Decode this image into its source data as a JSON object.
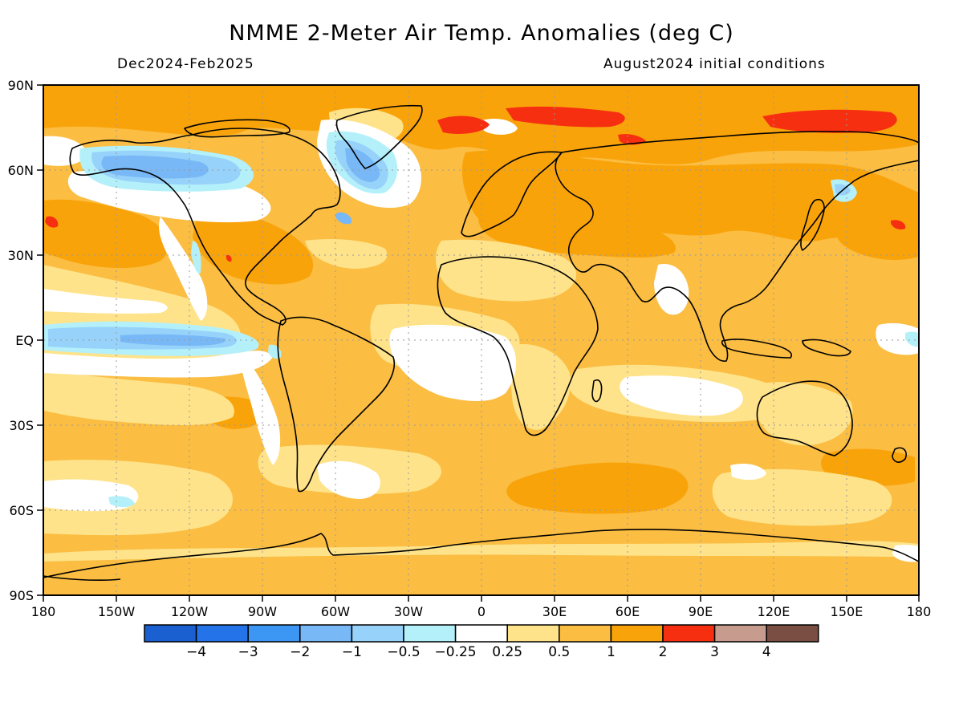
{
  "title": "NMME 2-Meter Air Temp. Anomalies (deg C)",
  "period": "Dec2024-Feb2025",
  "initial_conditions": "August2024 initial conditions",
  "lat_labels": [
    "90N",
    "60N",
    "30N",
    "EQ",
    "30S",
    "60S",
    "90S"
  ],
  "lon_labels": [
    "180",
    "150W",
    "120W",
    "90W",
    "60W",
    "30W",
    "0",
    "30E",
    "60E",
    "90E",
    "120E",
    "150E",
    "180"
  ],
  "colors": {
    "c_m4": "#1a60d0",
    "c_m3": "#2473e8",
    "c_m2": "#3c96f4",
    "c_m1": "#78b8f6",
    "c_m05": "#96d2fa",
    "c_m025": "#b4f0fa",
    "c_0": "#ffffff",
    "c_025": "#fee38a",
    "c_05": "#fbbd42",
    "c_1": "#f9a30a",
    "c_2": "#f62f10",
    "c_3": "#c79c8f",
    "c_4": "#7a4e42"
  },
  "legend": {
    "swatches": [
      "c_m4",
      "c_m3",
      "c_m2",
      "c_m1",
      "c_m05",
      "c_m025",
      "c_0",
      "c_025",
      "c_05",
      "c_1",
      "c_2",
      "c_3",
      "c_4"
    ],
    "labels": [
      "-4",
      "-3",
      "-2",
      "-1",
      "-0.5",
      "-0.25",
      "0.25",
      "0.5",
      "1",
      "2",
      "3",
      "4"
    ]
  }
}
